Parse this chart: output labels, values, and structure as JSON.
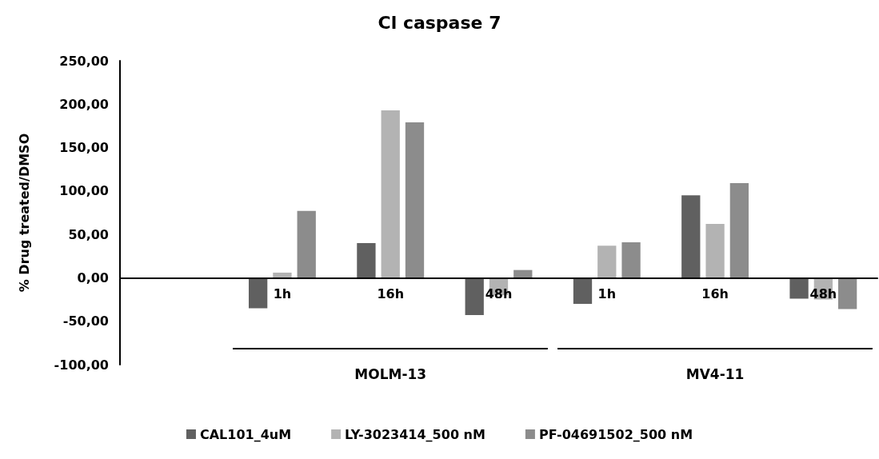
{
  "chart_data": {
    "type": "bar",
    "title": "Cl caspase 7",
    "ylabel": "% Drug treated/DMSO",
    "categories": [
      null,
      "1h",
      "16h",
      "48h",
      "1h",
      "16h",
      "48h"
    ],
    "series": [
      {
        "name": "CAL101_4uM",
        "color": "#606060",
        "values": [
          null,
          -35,
          40,
          -43,
          -30,
          95,
          -24
        ]
      },
      {
        "name": "LY-3023414_500 nM",
        "color": "#b3b3b3",
        "values": [
          null,
          6,
          193,
          -20,
          37,
          62,
          -25
        ]
      },
      {
        "name": "PF-04691502_500 nM",
        "color": "#8c8c8c",
        "values": [
          null,
          77,
          179,
          9,
          41,
          109,
          -36
        ]
      }
    ],
    "annotations": [
      "MOLM-13",
      "MV4-11"
    ],
    "ylim": [
      -100,
      250
    ],
    "yticks": [
      {
        "value": -100,
        "label": "-100,00"
      },
      {
        "value": -50,
        "label": "-50,00"
      },
      {
        "value": 0,
        "label": "0,00"
      },
      {
        "value": 50,
        "label": "50,00"
      },
      {
        "value": 100,
        "label": "100,00"
      },
      {
        "value": 150,
        "label": "150,00"
      },
      {
        "value": 200,
        "label": "200,00"
      },
      {
        "value": 250,
        "label": "250,00"
      }
    ],
    "grid": false,
    "legend": "bottom"
  }
}
